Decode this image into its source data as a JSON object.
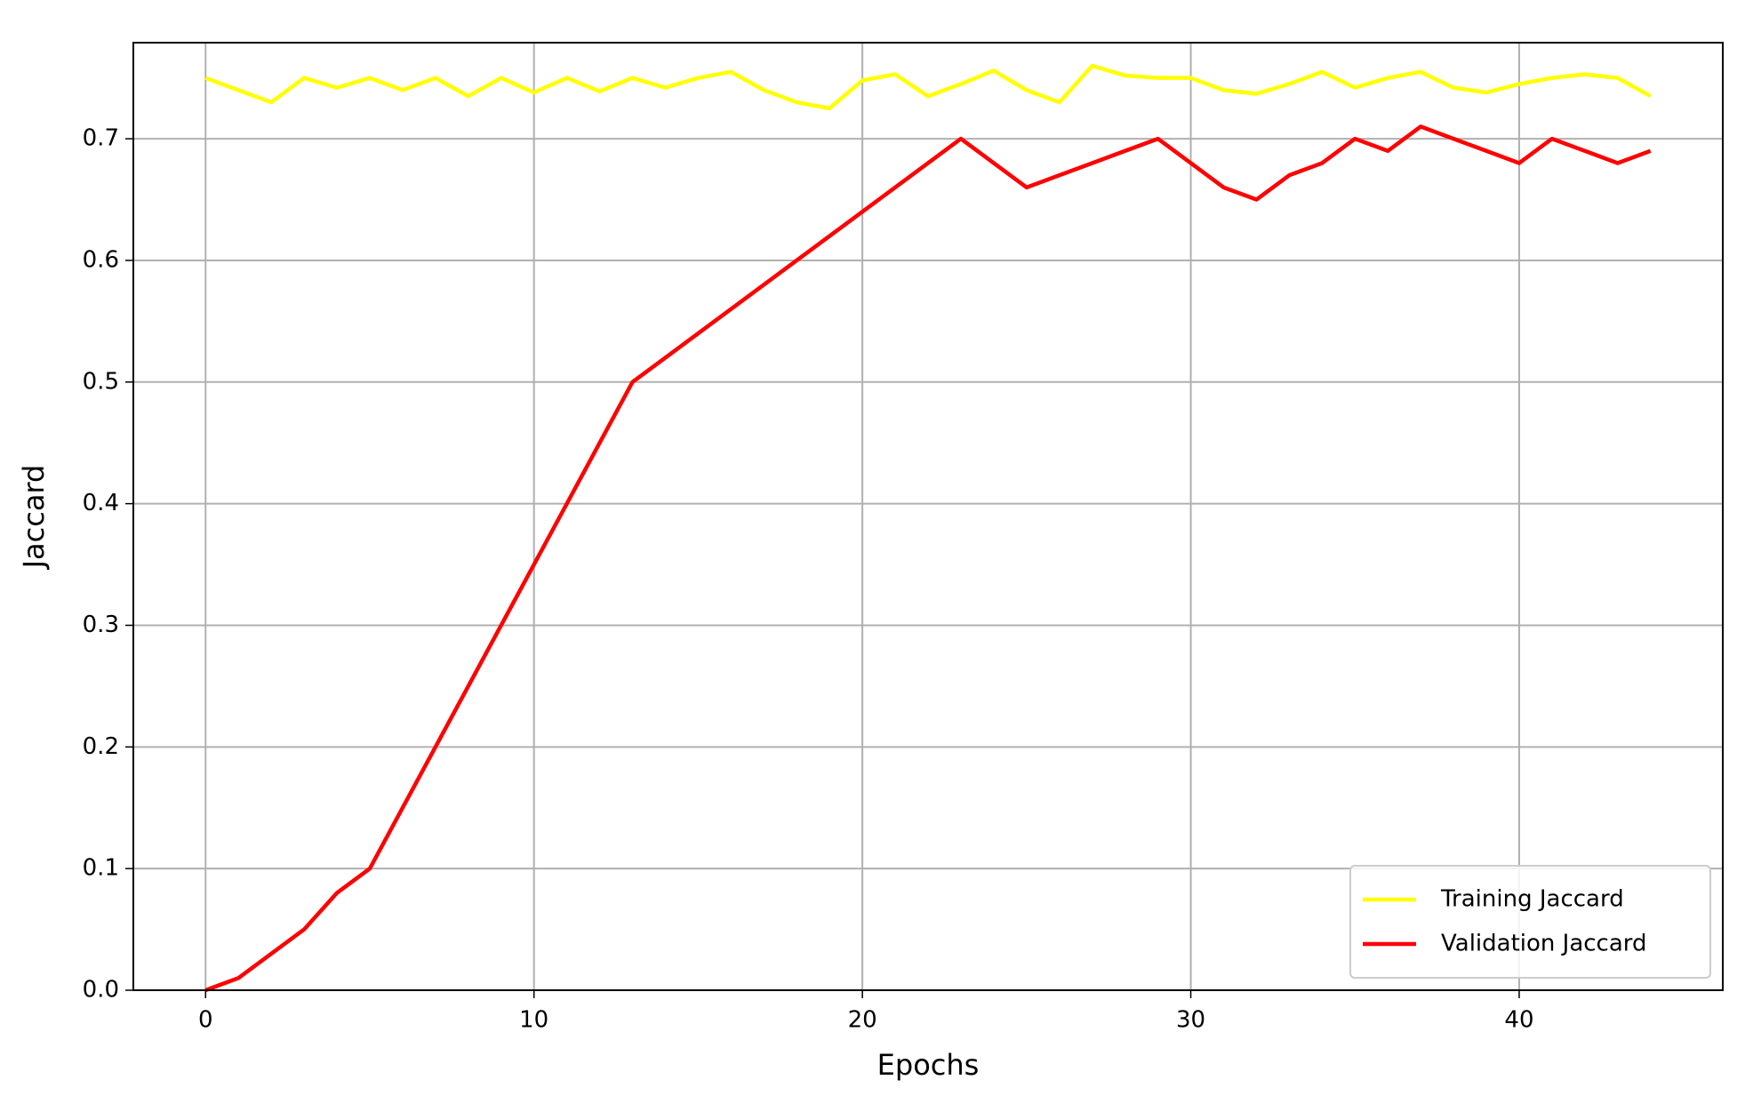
{
  "chart_data": {
    "type": "line",
    "xlabel": "Epochs",
    "ylabel": "Jaccard",
    "x": [
      0,
      1,
      2,
      3,
      4,
      5,
      6,
      7,
      8,
      9,
      10,
      11,
      12,
      13,
      14,
      15,
      16,
      17,
      18,
      19,
      20,
      21,
      22,
      23,
      24,
      25,
      26,
      27,
      28,
      29,
      30,
      31,
      32,
      33,
      34,
      35,
      36,
      37,
      38,
      39,
      40,
      41,
      42,
      43,
      44
    ],
    "series": [
      {
        "name": "Training Jaccard",
        "color": "#ffff00",
        "values": [
          0.75,
          0.74,
          0.73,
          0.75,
          0.742,
          0.75,
          0.74,
          0.75,
          0.735,
          0.75,
          0.738,
          0.75,
          0.739,
          0.75,
          0.742,
          0.75,
          0.755,
          0.74,
          0.73,
          0.725,
          0.748,
          0.753,
          0.735,
          0.745,
          0.756,
          0.74,
          0.73,
          0.76,
          0.752,
          0.75,
          0.75,
          0.74,
          0.737,
          0.745,
          0.755,
          0.742,
          0.75,
          0.755,
          0.742,
          0.738,
          0.745,
          0.75,
          0.753,
          0.75,
          0.735
        ]
      },
      {
        "name": "Validation Jaccard",
        "color": "#ff0000",
        "values": [
          0,
          0.01,
          0.03,
          0.05,
          0.08,
          0.1,
          0.15,
          0.2,
          0.25,
          0.3,
          0.35,
          0.4,
          0.45,
          0.5,
          0.52,
          0.54,
          0.56,
          0.58,
          0.6,
          0.62,
          0.64,
          0.66,
          0.68,
          0.7,
          0.68,
          0.66,
          0.67,
          0.68,
          0.69,
          0.7,
          0.68,
          0.66,
          0.65,
          0.67,
          0.68,
          0.7,
          0.69,
          0.71,
          0.7,
          0.69,
          0.68,
          0.7,
          0.69,
          0.68,
          0.69
        ]
      }
    ],
    "xlim": [
      -2.2,
      46.2
    ],
    "ylim": [
      0,
      0.779
    ],
    "xticks": [
      0,
      10,
      20,
      30,
      40
    ],
    "yticks": [
      {
        "value": 0,
        "label": "0.0"
      },
      0.1,
      0.2,
      0.3,
      0.4,
      0.5,
      0.6,
      0.7
    ],
    "grid": true,
    "legend": "lower right"
  }
}
